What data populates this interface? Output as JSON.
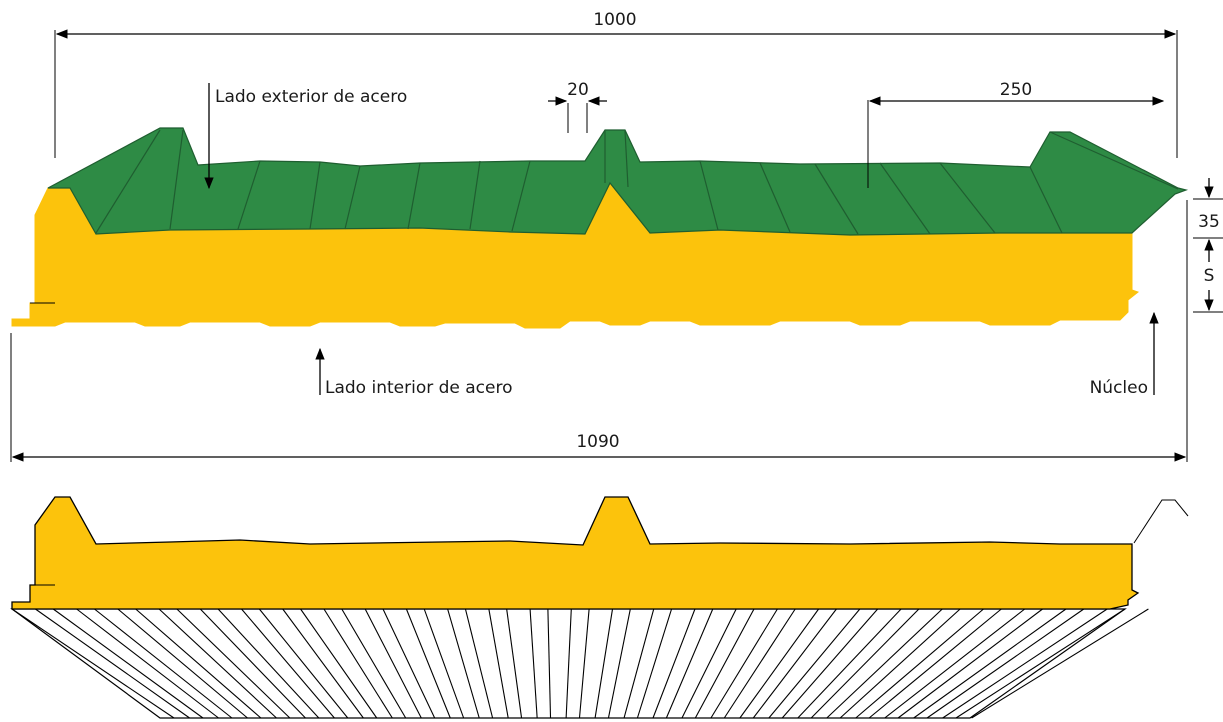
{
  "colors": {
    "steel_exterior": "#2E8B45",
    "steel_edge": "#1F5E30",
    "core": "#FCC30C",
    "line": "#000000",
    "underside_fill": "#ffffff"
  },
  "labels": {
    "width_cover": "1000",
    "width_total": "1090",
    "rib_top": "20",
    "rib_spacing": "250",
    "rib_height": "35",
    "thickness": "S",
    "exterior_steel": "Lado exterior de acero",
    "interior_steel": "Lado interior de acero",
    "core": "Núcleo"
  }
}
